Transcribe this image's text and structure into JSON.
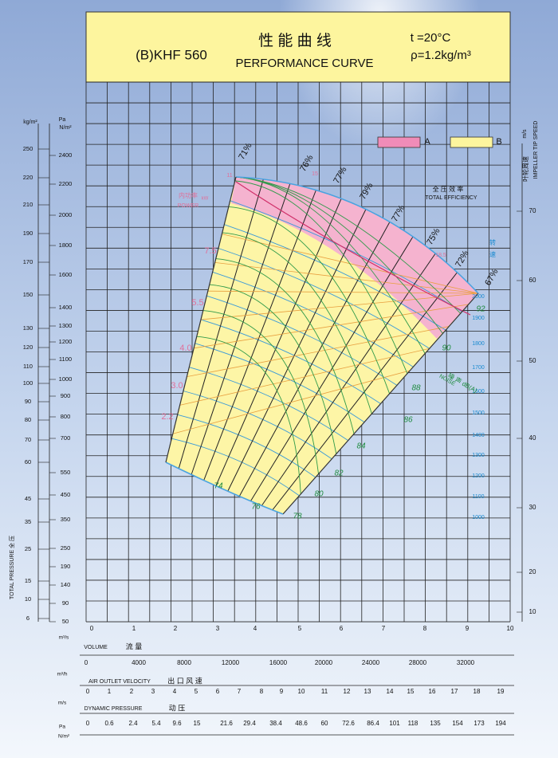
{
  "header": {
    "model": "(B)KHF 560",
    "title_cn": "性 能 曲 线",
    "title_en": "PERFORMANCE   CURVE",
    "temperature": "t =20°C",
    "density": "ρ=1.2kg/m³"
  },
  "legend": {
    "a": "A",
    "b": "B"
  },
  "left_axis": {
    "label": "TOTAL PRESSURE 全 压",
    "kg_unit": "kg/m²",
    "kg_ticks": [
      "250",
      "220",
      "210",
      "190",
      "170",
      "150",
      "130",
      "120",
      "110",
      "100",
      "90",
      "80",
      "70",
      "60",
      "45",
      "35",
      "25",
      "15",
      "10",
      "6"
    ],
    "pa_unit": "Pa",
    "pa_unit2": "N/m²",
    "pa_ticks": [
      "2400",
      "2200",
      "2000",
      "1800",
      "1600",
      "1400",
      "1300",
      "1200",
      "1100",
      "1000",
      "900",
      "800",
      "700",
      "550",
      "450",
      "350",
      "250",
      "190",
      "140",
      "90",
      "50"
    ]
  },
  "right_axis": {
    "unit": "m/s",
    "label_cn": "叶轮周速",
    "label_en": "IMPELLER TIP SPEED",
    "ticks": [
      "70",
      "60",
      "50",
      "40",
      "30",
      "20",
      "10"
    ]
  },
  "volume": {
    "unit": "m³/s",
    "label": "VOLUME",
    "label_cn": "流 量",
    "ticks": [
      "0",
      "1",
      "2",
      "3",
      "4",
      "5",
      "6",
      "7",
      "8",
      "9",
      "10"
    ]
  },
  "volume_h": {
    "unit": "m³/h",
    "ticks": [
      "0",
      "4000",
      "8000",
      "12000",
      "16000",
      "20000",
      "24000",
      "28000",
      "32000"
    ]
  },
  "velocity": {
    "label": "AIR OUTLET VELOCITY",
    "label_cn": "出 口 风 速",
    "unit": "m/s",
    "ticks": [
      "0",
      "1",
      "2",
      "3",
      "4",
      "5",
      "6",
      "7",
      "8",
      "9",
      "10",
      "11",
      "12",
      "13",
      "14",
      "15",
      "16",
      "17",
      "18",
      "19"
    ]
  },
  "dynamic_pressure": {
    "label": "DYNAMIC PRESSURE",
    "label_cn": "动 压",
    "unit": "Pa",
    "unit2": "N/m²",
    "ticks": [
      "0",
      "0.6",
      "2.4",
      "5.4",
      "9.6",
      "15",
      "21.6",
      "29.4",
      "38.4",
      "48.6",
      "60",
      "72.6",
      "86.4",
      "101",
      "118",
      "135",
      "154",
      "173",
      "194"
    ]
  },
  "efficiency": {
    "label_cn": "全 压 效 率",
    "label_en": "TOTAL EFFICIENCY",
    "labels": [
      "71%",
      "76%",
      "77%",
      "79%",
      "77%",
      "75%",
      "72%",
      "67%"
    ]
  },
  "power": {
    "label_cn": "内功率",
    "unit": "kW",
    "label_en": "POWER",
    "labels": [
      "11",
      "15",
      "18.5",
      "7.5",
      "5.5",
      "4.0",
      "3.0",
      "2.2"
    ]
  },
  "speed": {
    "label_cn1": "转",
    "label_cn2": "速",
    "labels": [
      "2000",
      "1900",
      "1800",
      "1700",
      "1600",
      "1500",
      "1400",
      "1300",
      "1200",
      "1100",
      "1000"
    ]
  },
  "noise": {
    "label_cn": "噪 声 dB(A)",
    "label_en": "NOISE",
    "labels": [
      "92",
      "90",
      "88",
      "86",
      "84",
      "82",
      "80",
      "78",
      "76",
      "74"
    ]
  }
}
